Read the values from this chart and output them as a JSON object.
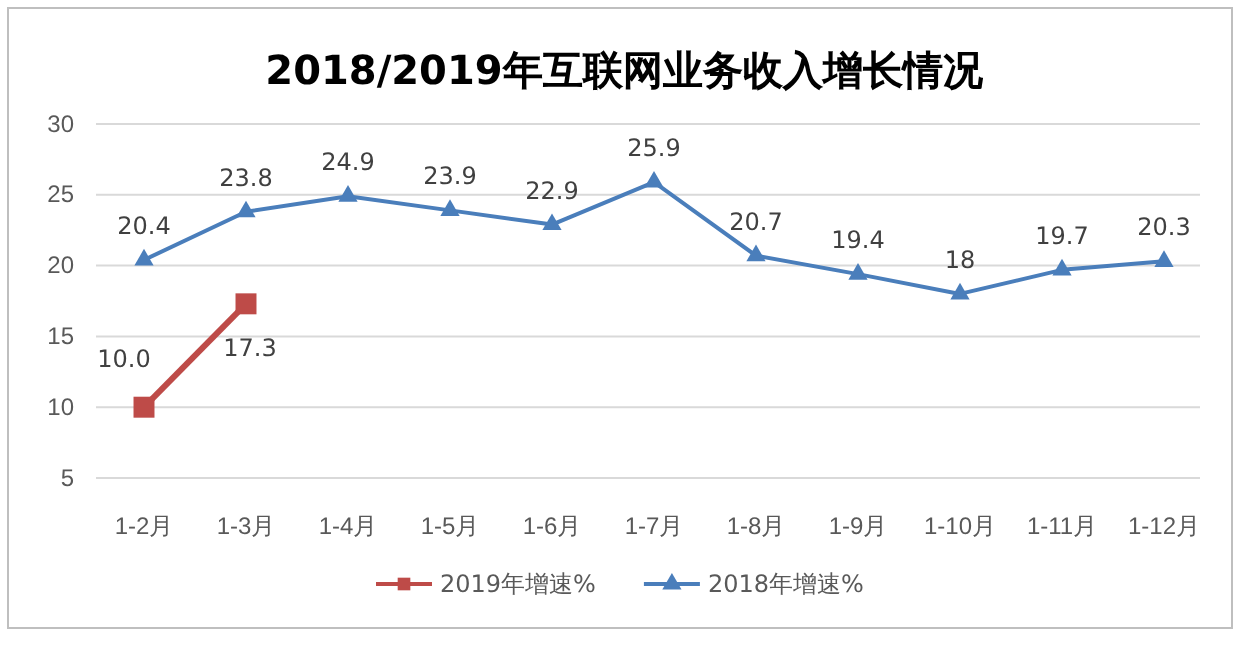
{
  "chart_data": {
    "type": "line",
    "title": "2018/2019年互联网业务收入增长情况",
    "categories": [
      "1-2月",
      "1-3月",
      "1-4月",
      "1-5月",
      "1-6月",
      "1-7月",
      "1-8月",
      "1-9月",
      "1-10月",
      "1-11月",
      "1-12月"
    ],
    "series": [
      {
        "name": "2019年增速%",
        "color": "#be4b48",
        "marker": "square",
        "values": [
          10.0,
          17.3,
          null,
          null,
          null,
          null,
          null,
          null,
          null,
          null,
          null
        ],
        "value_labels": [
          "10.0",
          "17.3",
          null,
          null,
          null,
          null,
          null,
          null,
          null,
          null,
          null
        ]
      },
      {
        "name": "2018年增速%",
        "color": "#4a7ebb",
        "marker": "triangle",
        "values": [
          20.4,
          23.8,
          24.9,
          23.9,
          22.9,
          25.9,
          20.7,
          19.4,
          18,
          19.7,
          20.3
        ],
        "value_labels": [
          "20.4",
          "23.8",
          "24.9",
          "23.9",
          "22.9",
          "25.9",
          "20.7",
          "19.4",
          "18",
          "19.7",
          "20.3"
        ]
      }
    ],
    "ylim": [
      5,
      30
    ],
    "yticks": [
      5,
      10,
      15,
      20,
      25,
      30
    ],
    "grid": "y",
    "legend": "bottom",
    "line_style": "solid"
  }
}
